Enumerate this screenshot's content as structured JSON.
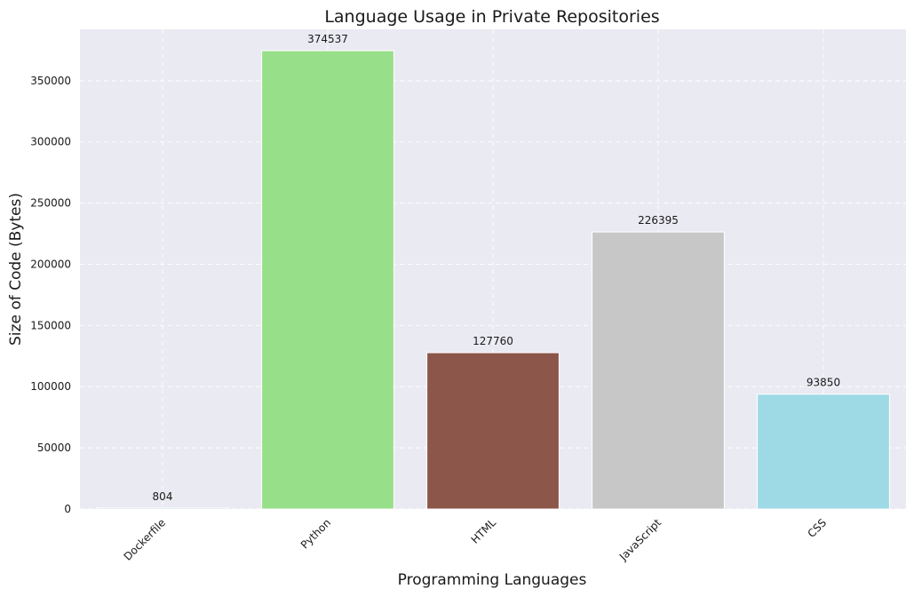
{
  "chart_data": {
    "type": "bar",
    "title": "Language Usage in Private Repositories",
    "xlabel": "Programming Languages",
    "ylabel": "Size of Code (Bytes)",
    "categories": [
      "Dockerfile",
      "Python",
      "HTML",
      "JavaScript",
      "CSS"
    ],
    "values": [
      804,
      374537,
      127760,
      226395,
      93850
    ],
    "colors": [
      "#1f77b4",
      "#98df8a",
      "#8c564b",
      "#c7c7c7",
      "#9edae5"
    ],
    "ylim": [
      0,
      392000
    ],
    "yticks": [
      0,
      50000,
      100000,
      150000,
      200000,
      250000,
      300000,
      350000
    ],
    "grid": true,
    "background": "#eaeaf2"
  }
}
